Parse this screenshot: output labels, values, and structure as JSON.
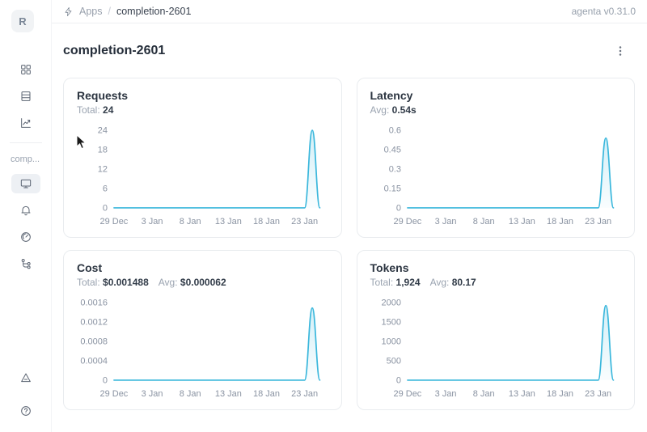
{
  "topbar": {
    "breadcrumb_app": "Apps",
    "breadcrumb_separator": "/",
    "breadcrumb_page": "completion-2601",
    "version": "agenta v0.31.0"
  },
  "sidebar": {
    "logo_letter": "R",
    "app_label": "comp...",
    "items": [
      {
        "name": "apps",
        "icon": "app-grid-icon"
      },
      {
        "name": "testsets",
        "icon": "table-icon"
      },
      {
        "name": "observability",
        "icon": "line-chart-icon"
      },
      {
        "name": "playground",
        "icon": "monitor-icon",
        "selected": true
      },
      {
        "name": "evaluations",
        "icon": "bell-icon"
      },
      {
        "name": "dashboard",
        "icon": "gauge-icon"
      },
      {
        "name": "traces",
        "icon": "trace-tree-icon"
      }
    ],
    "bottom_items": [
      {
        "name": "alerts",
        "icon": "warning-triangle-icon"
      },
      {
        "name": "help",
        "icon": "question-circle-icon"
      }
    ]
  },
  "page": {
    "title": "completion-2601"
  },
  "cards": [
    {
      "title": "Requests",
      "stats": [
        {
          "label": "Total:",
          "value": "24"
        }
      ]
    },
    {
      "title": "Latency",
      "stats": [
        {
          "label": "Avg:",
          "value": "0.54s"
        }
      ]
    },
    {
      "title": "Cost",
      "stats": [
        {
          "label": "Total:",
          "value": "$0.001488"
        },
        {
          "label": "Avg:",
          "value": "$0.000062"
        }
      ]
    },
    {
      "title": "Tokens",
      "stats": [
        {
          "label": "Total:",
          "value": "1,924"
        },
        {
          "label": "Avg:",
          "value": "80.17"
        }
      ]
    }
  ],
  "colors": {
    "accent_line": "#3ab7dc",
    "accent_fill": "rgba(58,183,220,0.22)",
    "selected_bg": "#edf0f4"
  },
  "chart_data": [
    {
      "type": "area",
      "title": "Requests",
      "x": [
        "29 Dec",
        "30 Dec",
        "31 Dec",
        "1 Jan",
        "2 Jan",
        "3 Jan",
        "4 Jan",
        "5 Jan",
        "6 Jan",
        "7 Jan",
        "8 Jan",
        "9 Jan",
        "10 Jan",
        "11 Jan",
        "12 Jan",
        "13 Jan",
        "14 Jan",
        "15 Jan",
        "16 Jan",
        "17 Jan",
        "18 Jan",
        "19 Jan",
        "20 Jan",
        "21 Jan",
        "22 Jan",
        "23 Jan",
        "24 Jan",
        "25 Jan"
      ],
      "values": [
        0,
        0,
        0,
        0,
        0,
        0,
        0,
        0,
        0,
        0,
        0,
        0,
        0,
        0,
        0,
        0,
        0,
        0,
        0,
        0,
        0,
        0,
        0,
        0,
        0,
        0,
        24,
        0
      ],
      "xticks": [
        {
          "i": 0,
          "label": "29 Dec"
        },
        {
          "i": 5,
          "label": "3 Jan"
        },
        {
          "i": 10,
          "label": "8 Jan"
        },
        {
          "i": 15,
          "label": "13 Jan"
        },
        {
          "i": 20,
          "label": "18 Jan"
        },
        {
          "i": 25,
          "label": "23 Jan"
        }
      ],
      "yticks": [
        [
          0,
          "0"
        ],
        [
          6,
          "6"
        ],
        [
          12,
          "12"
        ],
        [
          18,
          "18"
        ],
        [
          24,
          "24"
        ]
      ],
      "ylim": [
        0,
        24
      ],
      "grid": false,
      "legend": "none"
    },
    {
      "type": "area",
      "title": "Latency",
      "x": [
        "29 Dec",
        "30 Dec",
        "31 Dec",
        "1 Jan",
        "2 Jan",
        "3 Jan",
        "4 Jan",
        "5 Jan",
        "6 Jan",
        "7 Jan",
        "8 Jan",
        "9 Jan",
        "10 Jan",
        "11 Jan",
        "12 Jan",
        "13 Jan",
        "14 Jan",
        "15 Jan",
        "16 Jan",
        "17 Jan",
        "18 Jan",
        "19 Jan",
        "20 Jan",
        "21 Jan",
        "22 Jan",
        "23 Jan",
        "24 Jan",
        "25 Jan"
      ],
      "values": [
        0,
        0,
        0,
        0,
        0,
        0,
        0,
        0,
        0,
        0,
        0,
        0,
        0,
        0,
        0,
        0,
        0,
        0,
        0,
        0,
        0,
        0,
        0,
        0,
        0,
        0,
        0.54,
        0
      ],
      "xticks": [
        {
          "i": 0,
          "label": "29 Dec"
        },
        {
          "i": 5,
          "label": "3 Jan"
        },
        {
          "i": 10,
          "label": "8 Jan"
        },
        {
          "i": 15,
          "label": "13 Jan"
        },
        {
          "i": 20,
          "label": "18 Jan"
        },
        {
          "i": 25,
          "label": "23 Jan"
        }
      ],
      "yticks": [
        [
          0,
          "0"
        ],
        [
          0.15,
          "0.15"
        ],
        [
          0.3,
          "0.3"
        ],
        [
          0.45,
          "0.45"
        ],
        [
          0.6,
          "0.6"
        ]
      ],
      "ylim": [
        0,
        0.6
      ],
      "grid": false,
      "legend": "none"
    },
    {
      "type": "area",
      "title": "Cost",
      "x": [
        "29 Dec",
        "30 Dec",
        "31 Dec",
        "1 Jan",
        "2 Jan",
        "3 Jan",
        "4 Jan",
        "5 Jan",
        "6 Jan",
        "7 Jan",
        "8 Jan",
        "9 Jan",
        "10 Jan",
        "11 Jan",
        "12 Jan",
        "13 Jan",
        "14 Jan",
        "15 Jan",
        "16 Jan",
        "17 Jan",
        "18 Jan",
        "19 Jan",
        "20 Jan",
        "21 Jan",
        "22 Jan",
        "23 Jan",
        "24 Jan",
        "25 Jan"
      ],
      "values": [
        0,
        0,
        0,
        0,
        0,
        0,
        0,
        0,
        0,
        0,
        0,
        0,
        0,
        0,
        0,
        0,
        0,
        0,
        0,
        0,
        0,
        0,
        0,
        0,
        0,
        0,
        0.001488,
        0
      ],
      "xticks": [
        {
          "i": 0,
          "label": "29 Dec"
        },
        {
          "i": 5,
          "label": "3 Jan"
        },
        {
          "i": 10,
          "label": "8 Jan"
        },
        {
          "i": 15,
          "label": "13 Jan"
        },
        {
          "i": 20,
          "label": "18 Jan"
        },
        {
          "i": 25,
          "label": "23 Jan"
        }
      ],
      "yticks": [
        [
          0,
          "0"
        ],
        [
          0.0004,
          "0.0004"
        ],
        [
          0.0008,
          "0.0008"
        ],
        [
          0.0012,
          "0.0012"
        ],
        [
          0.0016,
          "0.0016"
        ]
      ],
      "ylim": [
        0,
        0.0016
      ],
      "grid": false,
      "legend": "none"
    },
    {
      "type": "area",
      "title": "Tokens",
      "x": [
        "29 Dec",
        "30 Dec",
        "31 Dec",
        "1 Jan",
        "2 Jan",
        "3 Jan",
        "4 Jan",
        "5 Jan",
        "6 Jan",
        "7 Jan",
        "8 Jan",
        "9 Jan",
        "10 Jan",
        "11 Jan",
        "12 Jan",
        "13 Jan",
        "14 Jan",
        "15 Jan",
        "16 Jan",
        "17 Jan",
        "18 Jan",
        "19 Jan",
        "20 Jan",
        "21 Jan",
        "22 Jan",
        "23 Jan",
        "24 Jan",
        "25 Jan"
      ],
      "values": [
        0,
        0,
        0,
        0,
        0,
        0,
        0,
        0,
        0,
        0,
        0,
        0,
        0,
        0,
        0,
        0,
        0,
        0,
        0,
        0,
        0,
        0,
        0,
        0,
        0,
        0,
        1924,
        0
      ],
      "xticks": [
        {
          "i": 0,
          "label": "29 Dec"
        },
        {
          "i": 5,
          "label": "3 Jan"
        },
        {
          "i": 10,
          "label": "8 Jan"
        },
        {
          "i": 15,
          "label": "13 Jan"
        },
        {
          "i": 20,
          "label": "18 Jan"
        },
        {
          "i": 25,
          "label": "23 Jan"
        }
      ],
      "yticks": [
        [
          0,
          "0"
        ],
        [
          500,
          "500"
        ],
        [
          1000,
          "1000"
        ],
        [
          1500,
          "1500"
        ],
        [
          2000,
          "2000"
        ]
      ],
      "ylim": [
        0,
        2000
      ],
      "grid": false,
      "legend": "none"
    }
  ]
}
